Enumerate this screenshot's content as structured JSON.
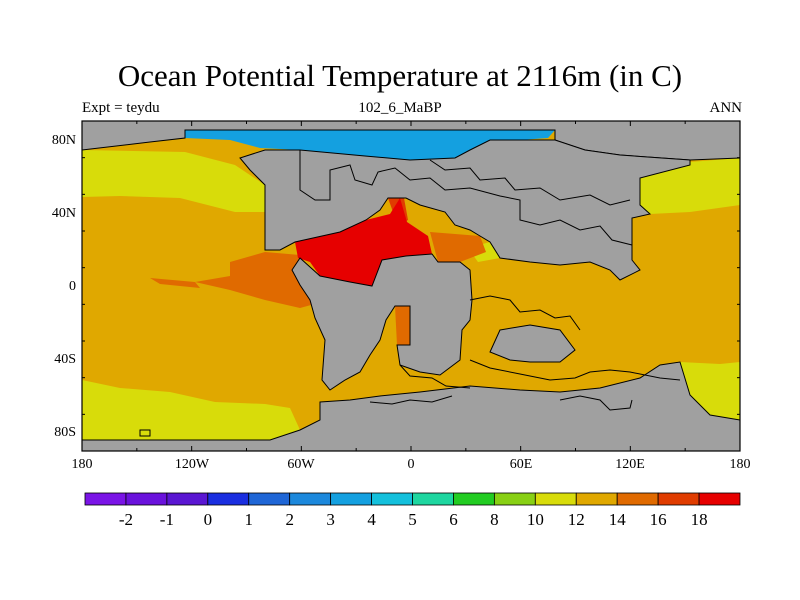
{
  "title": "Ocean Potential Temperature at 2116m (in C)",
  "left_label": "Expt = teydu",
  "center_label": "102_6_MaBP",
  "right_label": "ANN",
  "lat_ticks": [
    "80N",
    "40N",
    "0",
    "40S",
    "80S"
  ],
  "lon_ticks": [
    "180",
    "120W",
    "60W",
    "0",
    "60E",
    "120E",
    "180"
  ],
  "colorbar": {
    "labels": [
      "-2",
      "-1",
      "0",
      "1",
      "2",
      "3",
      "4",
      "5",
      "6",
      "8",
      "10",
      "12",
      "14",
      "16",
      "18"
    ],
    "colors": [
      "#7a14e6",
      "#6a12dc",
      "#5a16d2",
      "#1a2ee0",
      "#1f66d6",
      "#1c88dc",
      "#14a0e0",
      "#14c0dc",
      "#1ed6a0",
      "#22cc22",
      "#88d014",
      "#d8dc0a",
      "#e0a800",
      "#e06a00",
      "#e03c00",
      "#e60000"
    ]
  },
  "colors": {
    "land": "#a0a0a0",
    "temp_10_12": "#d8dc0a",
    "temp_12_14": "#e0a800",
    "temp_14_16": "#e06a00",
    "temp_16_18": "#e03c00",
    "temp_over_18": "#e60000",
    "temp_3_4": "#14a0e0"
  }
}
